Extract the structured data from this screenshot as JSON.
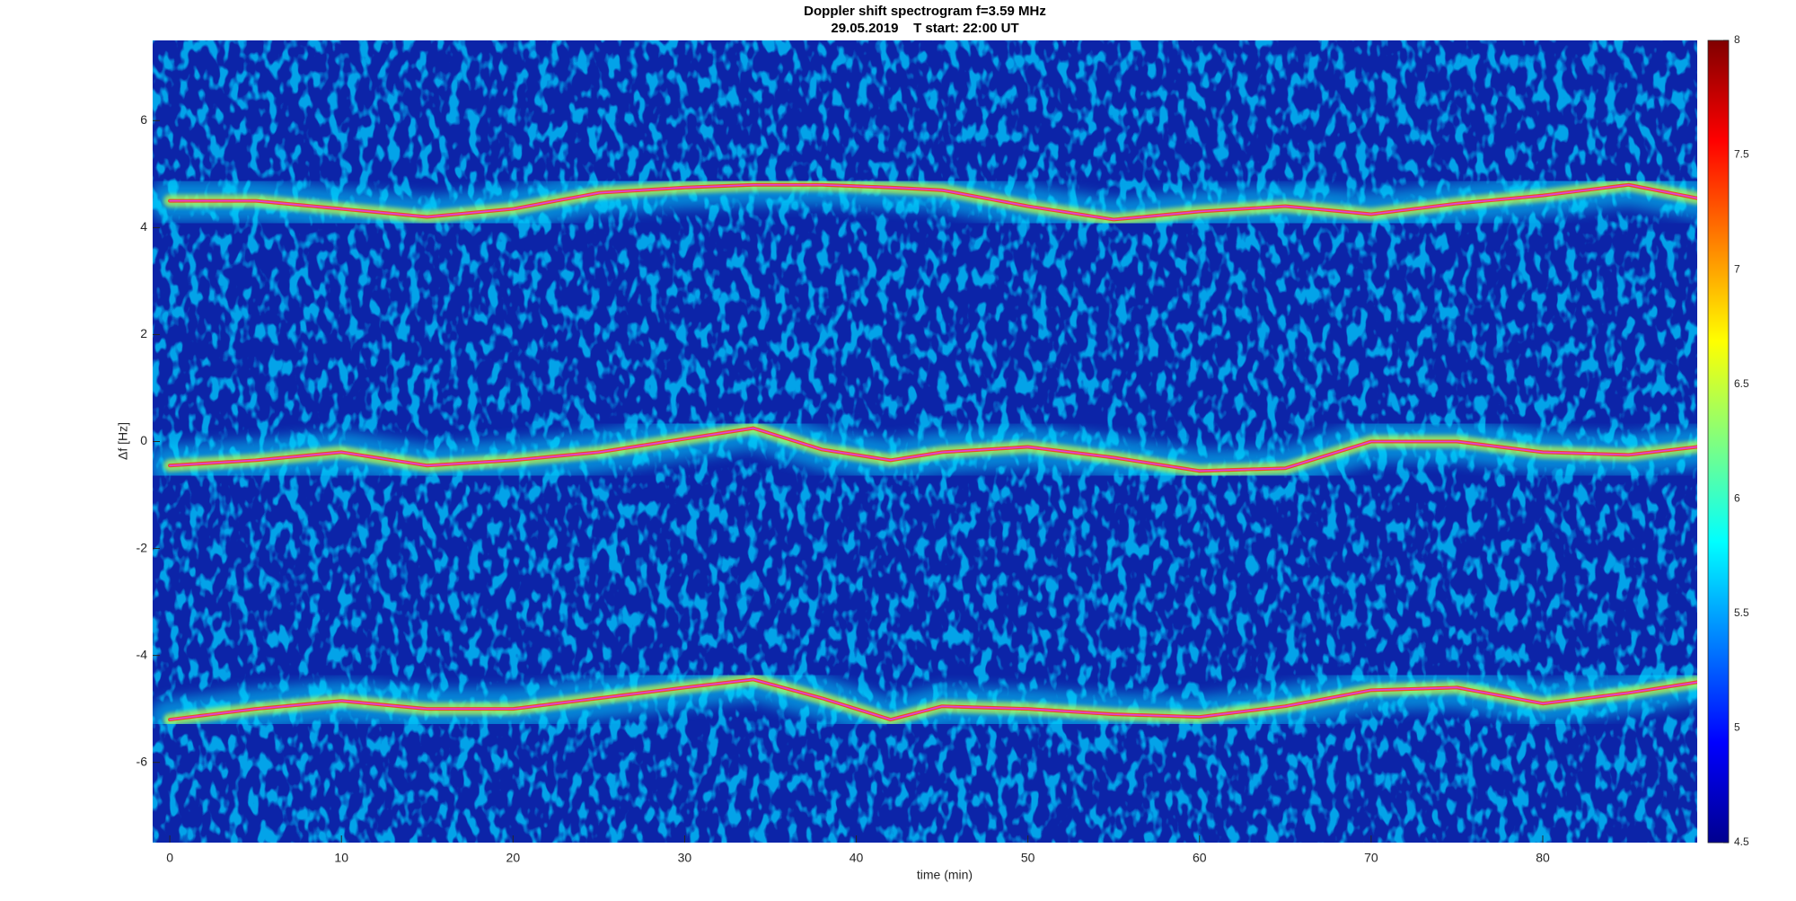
{
  "chart_data": {
    "type": "spectrogram",
    "title": "Doppler shift spectrogram f=3.59 MHz",
    "subtitle": "29.05.2019    T start: 22:00 UT",
    "x_label": "time (min)",
    "y_label": "Δf [Hz]",
    "xlim": [
      -1,
      89
    ],
    "xticks": [
      0,
      10,
      20,
      30,
      40,
      50,
      60,
      70,
      80
    ],
    "ylim": [
      -7.5,
      7.5
    ],
    "yticks": [
      -6,
      -4,
      -2,
      0,
      2,
      4,
      6
    ],
    "clim": [
      4.5,
      8
    ],
    "cticks": [
      4.5,
      5,
      5.5,
      6,
      6.5,
      7,
      7.5,
      8
    ],
    "x": [
      0,
      5,
      10,
      15,
      20,
      25,
      30,
      34,
      38,
      42,
      45,
      50,
      55,
      60,
      65,
      70,
      75,
      80,
      85,
      89
    ],
    "series": [
      {
        "color": "#e040e0",
        "values": [
          4.5,
          4.5,
          4.35,
          4.2,
          4.35,
          4.65,
          4.75,
          4.8,
          4.8,
          4.75,
          4.7,
          4.4,
          4.15,
          4.3,
          4.4,
          4.25,
          4.45,
          4.6,
          4.8,
          4.55
        ]
      },
      {
        "color": "#e040e0",
        "values": [
          -0.45,
          -0.35,
          -0.2,
          -0.45,
          -0.35,
          -0.2,
          0.05,
          0.25,
          -0.15,
          -0.35,
          -0.2,
          -0.1,
          -0.3,
          -0.55,
          -0.5,
          0,
          0,
          -0.2,
          -0.25,
          -0.1
        ]
      },
      {
        "color": "#e040e0",
        "values": [
          -5.2,
          -5.0,
          -4.85,
          -5.0,
          -5.0,
          -4.8,
          -4.6,
          -4.45,
          -4.8,
          -5.2,
          -4.95,
          -5.0,
          -5.1,
          -5.15,
          -4.95,
          -4.65,
          -4.6,
          -4.9,
          -4.7,
          -4.5
        ]
      }
    ]
  }
}
